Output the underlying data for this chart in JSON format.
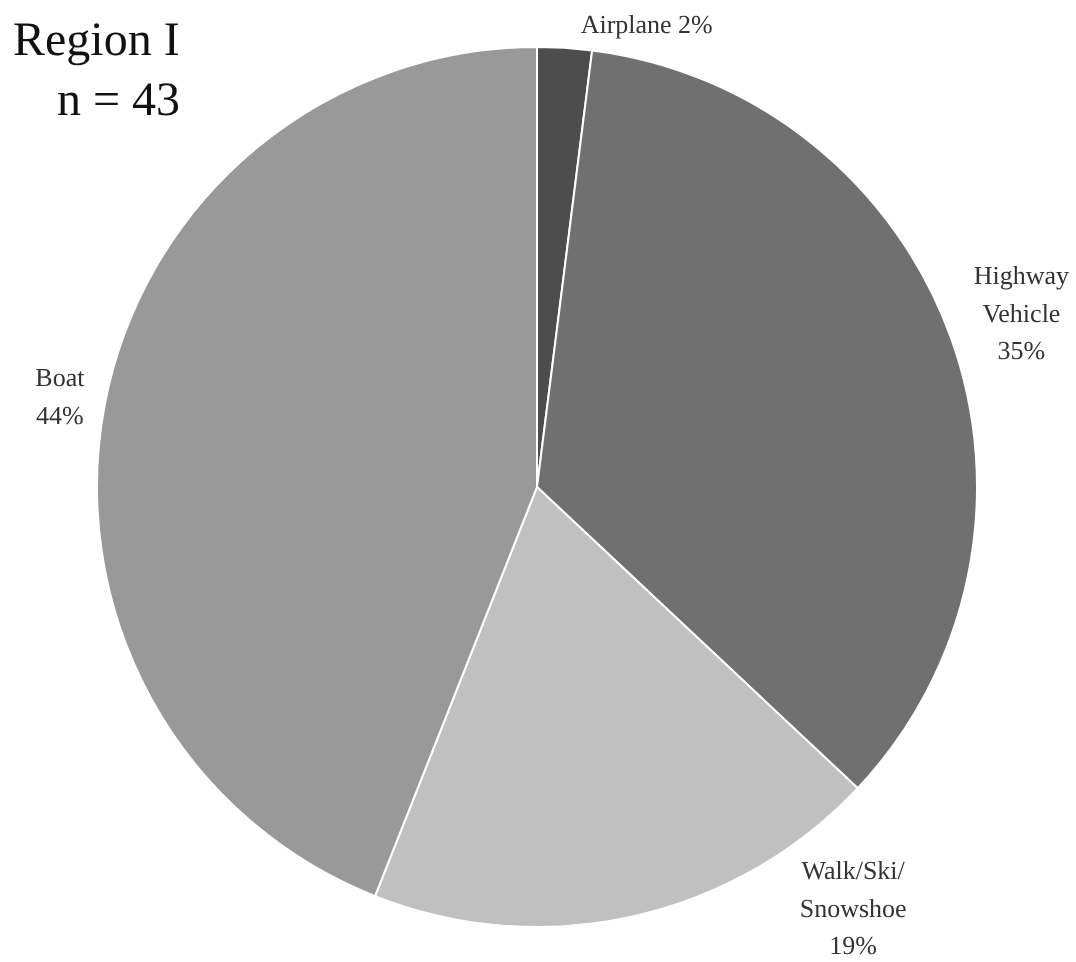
{
  "chart_data": {
    "type": "pie",
    "title": "Region I",
    "subtitle": "n = 43",
    "categories": [
      "Airplane",
      "Highway Vehicle",
      "Walk/Ski/Snowshoe",
      "Boat"
    ],
    "values": [
      2,
      35,
      19,
      44
    ],
    "colors": [
      "#4d4d4d",
      "#707070",
      "#c0c0c0",
      "#999999"
    ],
    "value_labels": [
      "2%",
      "35%",
      "19%",
      "44%"
    ]
  }
}
